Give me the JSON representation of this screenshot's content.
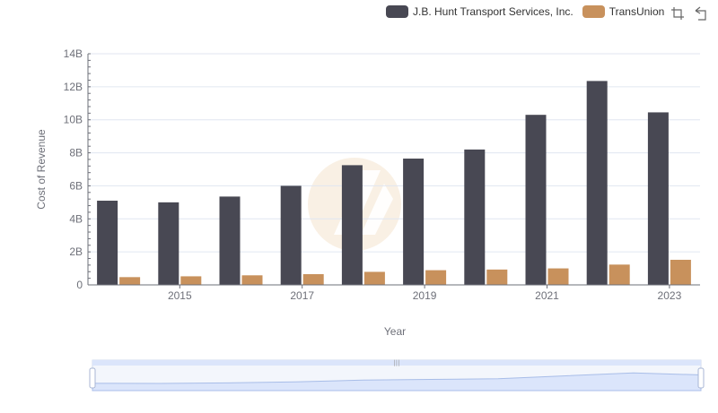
{
  "chart_data": {
    "type": "bar",
    "x": [
      2014,
      2015,
      2016,
      2017,
      2018,
      2019,
      2020,
      2021,
      2022,
      2023
    ],
    "x_tick_labels": [
      "2015",
      "2017",
      "2019",
      "2021",
      "2023"
    ],
    "series": [
      {
        "name": "J.B. Hunt Transport Services, Inc.",
        "color": "#484853",
        "values": [
          5.1,
          5.0,
          5.35,
          6.0,
          7.25,
          7.65,
          8.2,
          10.3,
          12.35,
          10.45
        ]
      },
      {
        "name": "TransUnion",
        "color": "#c8915c",
        "values": [
          0.47,
          0.52,
          0.58,
          0.65,
          0.79,
          0.89,
          0.93,
          1.0,
          1.23,
          1.52
        ]
      }
    ],
    "ylim": [
      0,
      14
    ],
    "y_ticks": [
      {
        "value": 0,
        "label": "0"
      },
      {
        "value": 2,
        "label": "2B"
      },
      {
        "value": 4,
        "label": "4B"
      },
      {
        "value": 6,
        "label": "6B"
      },
      {
        "value": 8,
        "label": "8B"
      },
      {
        "value": 10,
        "label": "10B"
      },
      {
        "value": 12,
        "label": "12B"
      },
      {
        "value": 14,
        "label": "14B"
      }
    ],
    "xlabel": "Year",
    "ylabel": "Cost of Revenue",
    "grid": true,
    "legend_position": "top-right"
  },
  "toolbox": {
    "icons": [
      "zoom-icon",
      "zoom-reset-icon"
    ]
  },
  "colors": {
    "grid": "#e0e6f1",
    "axis": "#6e7079",
    "slider_fill": "#dbe5fb",
    "slider_border": "#b8c8ef",
    "watermark": "#f7ead9"
  }
}
